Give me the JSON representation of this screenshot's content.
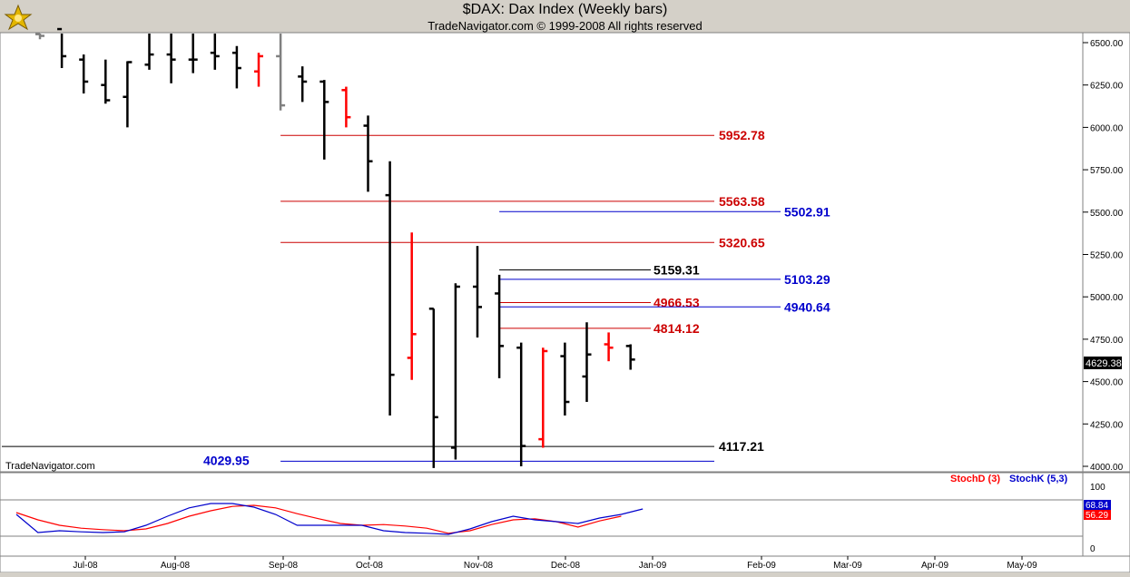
{
  "header": {
    "title": "$DAX:  Dax Index  (Weekly bars)",
    "subtitle": "TradeNavigator.com © 1999-2008 All rights reserved"
  },
  "watermark": "TradeNavigator.com",
  "price_panel": {
    "last_price_label": "4629.38",
    "last_price_value": 4629.38
  },
  "indicator_panel": {
    "legend": [
      "StochD (3)",
      "StochK (5,3)"
    ],
    "stochd_badge": "56.29",
    "stochk_badge": "68.84"
  },
  "colors": {
    "up_bar": "#000000",
    "down_bar_red": "#ff0000",
    "green_bar": "#00cc00",
    "gray_bar": "#808080",
    "red_level": "#cc0000",
    "blue_level": "#0000cc",
    "black_level": "#000000",
    "stochd": "#ff0000",
    "stochk": "#0000cc"
  },
  "chart_data": [
    {
      "type": "bar",
      "subtype": "ohlc",
      "title": "$DAX:  Dax Index  (Weekly bars)",
      "x_ticks": [
        "Jul-08",
        "Aug-08",
        "Sep-08",
        "Oct-08",
        "Nov-08",
        "Dec-08",
        "Jan-09",
        "Feb-09",
        "Mar-09",
        "Apr-09",
        "May-09"
      ],
      "y_ticks": [
        "4000.00",
        "4250.00",
        "4500.00",
        "4750.00",
        "5000.00",
        "5250.00",
        "5500.00",
        "5750.00",
        "6000.00",
        "6250.00",
        "6500.00"
      ],
      "ylim": [
        3985,
        6535
      ],
      "grid": false,
      "bars": [
        {
          "week": "2008-06-20",
          "open": 6550,
          "high": 6600,
          "low": 6520,
          "close": 6540,
          "color": "gray"
        },
        {
          "week": "2008-06-27",
          "open": 6580,
          "high": 6600,
          "low": 6350,
          "close": 6420,
          "color": "black"
        },
        {
          "week": "2008-07-04",
          "open": 6400,
          "high": 6430,
          "low": 6200,
          "close": 6270,
          "color": "black"
        },
        {
          "week": "2008-07-11",
          "open": 6250,
          "high": 6400,
          "low": 6140,
          "close": 6160,
          "color": "black"
        },
        {
          "week": "2008-07-18",
          "open": 6180,
          "high": 6390,
          "low": 6000,
          "close": 6385,
          "color": "black"
        },
        {
          "week": "2008-07-25",
          "open": 6370,
          "high": 6570,
          "low": 6340,
          "close": 6430,
          "color": "black"
        },
        {
          "week": "2008-08-01",
          "open": 6430,
          "high": 6560,
          "low": 6260,
          "close": 6400,
          "color": "black"
        },
        {
          "week": "2008-08-08",
          "open": 6400,
          "high": 6560,
          "low": 6320,
          "close": 6400,
          "color": "black"
        },
        {
          "week": "2008-08-15",
          "open": 6440,
          "high": 6560,
          "low": 6340,
          "close": 6420,
          "color": "black"
        },
        {
          "week": "2008-08-22",
          "open": 6440,
          "high": 6480,
          "low": 6230,
          "close": 6350,
          "color": "black"
        },
        {
          "week": "2008-08-29",
          "open": 6330,
          "high": 6440,
          "low": 6240,
          "close": 6420,
          "color": "red"
        },
        {
          "week": "2008-09-05",
          "open": 6420,
          "high": 6560,
          "low": 6100,
          "close": 6130,
          "color": "gray"
        },
        {
          "week": "2008-09-12",
          "open": 6300,
          "high": 6360,
          "low": 6150,
          "close": 6270,
          "color": "black"
        },
        {
          "week": "2008-09-19",
          "open": 6270,
          "high": 6280,
          "low": 5810,
          "close": 6150,
          "color": "black"
        },
        {
          "week": "2008-09-26",
          "open": 6220,
          "high": 6240,
          "low": 6000,
          "close": 6060,
          "color": "red"
        },
        {
          "week": "2008-10-03",
          "open": 6010,
          "high": 6070,
          "low": 5620,
          "close": 5800,
          "color": "black"
        },
        {
          "week": "2008-10-10",
          "open": 5600,
          "high": 5800,
          "low": 4300,
          "close": 4540,
          "color": "black"
        },
        {
          "week": "2008-10-17",
          "open": 4640,
          "high": 5380,
          "low": 4510,
          "close": 4780,
          "color": "red"
        },
        {
          "week": "2008-10-24",
          "open": 4930,
          "high": 4930,
          "low": 3990,
          "close": 4290,
          "color": "black"
        },
        {
          "week": "2008-10-31",
          "open": 4110,
          "high": 5080,
          "low": 4040,
          "close": 5060,
          "color": "black"
        },
        {
          "week": "2008-11-07",
          "open": 5060,
          "high": 5300,
          "low": 4760,
          "close": 4940,
          "color": "black"
        },
        {
          "week": "2008-11-14",
          "open": 5020,
          "high": 5130,
          "low": 4520,
          "close": 4710,
          "color": "black"
        },
        {
          "week": "2008-11-21",
          "open": 4700,
          "high": 4730,
          "low": 4000,
          "close": 4120,
          "color": "black"
        },
        {
          "week": "2008-11-28",
          "open": 4160,
          "high": 4700,
          "low": 4110,
          "close": 4680,
          "color": "red"
        },
        {
          "week": "2008-12-05",
          "open": 4650,
          "high": 4730,
          "low": 4300,
          "close": 4380,
          "color": "black"
        },
        {
          "week": "2008-12-12",
          "open": 4530,
          "high": 4850,
          "low": 4380,
          "close": 4660,
          "color": "black"
        },
        {
          "week": "2008-12-19",
          "open": 4720,
          "high": 4790,
          "low": 4620,
          "close": 4700,
          "color": "red"
        },
        {
          "week": "2008-12-26",
          "open": 4710,
          "high": 4720,
          "low": 4570,
          "close": 4630,
          "color": "black"
        }
      ],
      "levels": [
        {
          "label": "5952.78",
          "value": 5952.78,
          "color": "red",
          "from_week": 11
        },
        {
          "label": "5563.58",
          "value": 5563.58,
          "color": "red",
          "from_week": 11
        },
        {
          "label": "5502.91",
          "value": 5502.91,
          "color": "blue",
          "from_week": 21
        },
        {
          "label": "5320.65",
          "value": 5320.65,
          "color": "red",
          "from_week": 11
        },
        {
          "label": "5159.31",
          "value": 5159.31,
          "color": "black",
          "from_week": 21
        },
        {
          "label": "5103.29",
          "value": 5103.29,
          "color": "blue",
          "from_week": 21
        },
        {
          "label": "4966.53",
          "value": 4966.53,
          "color": "red",
          "from_week": 21
        },
        {
          "label": "4940.64",
          "value": 4940.64,
          "color": "blue",
          "from_week": 21
        },
        {
          "label": "4814.12",
          "value": 4814.12,
          "color": "red",
          "from_week": 21
        },
        {
          "label": "4117.21",
          "value": 4117.21,
          "color": "black",
          "from_week": 0
        },
        {
          "label": "4029.95",
          "value": 4029.95,
          "color": "blue",
          "from_week": 11
        }
      ]
    },
    {
      "type": "line",
      "title": "",
      "series": [
        {
          "name": "StochD (3)",
          "values": [
            65,
            45,
            30,
            22,
            18,
            15,
            20,
            35,
            55,
            70,
            82,
            85,
            78,
            62,
            48,
            35,
            30,
            32,
            28,
            22,
            8,
            15,
            32,
            45,
            48,
            40,
            25,
            42,
            55
          ]
        },
        {
          "name": "StochK (5,3)",
          "values": [
            60,
            10,
            15,
            12,
            10,
            12,
            30,
            55,
            78,
            90,
            90,
            80,
            60,
            30,
            30,
            30,
            30,
            15,
            10,
            8,
            5,
            20,
            40,
            55,
            45,
            40,
            35,
            50,
            60,
            75
          ]
        }
      ],
      "y_ticks": [
        "0",
        "100"
      ],
      "ylim": [
        -10,
        120
      ],
      "legend": "top-right"
    }
  ]
}
